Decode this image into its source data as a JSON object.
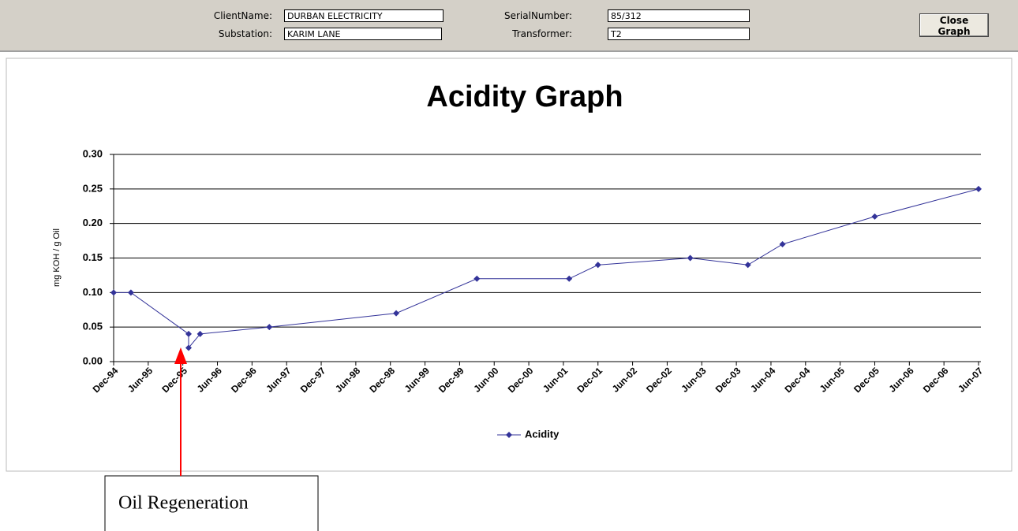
{
  "header": {
    "fields": [
      {
        "label": "ClientName:",
        "value": "DURBAN ELECTRICITY"
      },
      {
        "label": "Substation:",
        "value": "KARIM LANE"
      },
      {
        "label": "SerialNumber:",
        "value": "85/312"
      },
      {
        "label": "Transformer:",
        "value": "T2"
      }
    ],
    "button": "Close Graph"
  },
  "chart_data": {
    "type": "line",
    "title": "Acidity Graph",
    "y_label": "mg KOH / g Oil",
    "series": [
      {
        "name": "Acidity",
        "color": "#333399",
        "x": [
          "1994-12",
          "1995-03",
          "1996-01",
          "1996-01",
          "1996-03",
          "1997-03",
          "1999-01",
          "2000-03",
          "2001-07",
          "2001-12",
          "2003-04",
          "2004-02",
          "2004-08",
          "2005-12",
          "2007-06"
        ],
        "values": [
          0.1,
          0.1,
          0.04,
          0.02,
          0.04,
          0.05,
          0.07,
          0.12,
          0.12,
          0.14,
          0.15,
          0.14,
          0.17,
          0.21,
          0.25
        ]
      }
    ],
    "xlim": [
      "1994-12",
      "2007-06"
    ],
    "xticks": [
      {
        "value": "1994-12",
        "label": "Dec-94"
      },
      {
        "value": "1995-06",
        "label": "Jun-95"
      },
      {
        "value": "1995-12",
        "label": "Dec-95"
      },
      {
        "value": "1996-06",
        "label": "Jun-96"
      },
      {
        "value": "1996-12",
        "label": "Dec-96"
      },
      {
        "value": "1997-06",
        "label": "Jun-97"
      },
      {
        "value": "1997-12",
        "label": "Dec-97"
      },
      {
        "value": "1998-06",
        "label": "Jun-98"
      },
      {
        "value": "1998-12",
        "label": "Dec-98"
      },
      {
        "value": "1999-06",
        "label": "Jun-99"
      },
      {
        "value": "1999-12",
        "label": "Dec-99"
      },
      {
        "value": "2000-06",
        "label": "Jun-00"
      },
      {
        "value": "2000-12",
        "label": "Dec-00"
      },
      {
        "value": "2001-06",
        "label": "Jun-01"
      },
      {
        "value": "2001-12",
        "label": "Dec-01"
      },
      {
        "value": "2002-06",
        "label": "Jun-02"
      },
      {
        "value": "2002-12",
        "label": "Dec-02"
      },
      {
        "value": "2003-06",
        "label": "Jun-03"
      },
      {
        "value": "2003-12",
        "label": "Dec-03"
      },
      {
        "value": "2004-06",
        "label": "Jun-04"
      },
      {
        "value": "2004-12",
        "label": "Dec-04"
      },
      {
        "value": "2005-06",
        "label": "Jun-05"
      },
      {
        "value": "2005-12",
        "label": "Dec-05"
      },
      {
        "value": "2006-06",
        "label": "Jun-06"
      },
      {
        "value": "2006-12",
        "label": "Dec-06"
      },
      {
        "value": "2007-06",
        "label": "Jun-07"
      }
    ],
    "ylim": [
      0,
      0.3
    ],
    "yticks": [
      {
        "value": 0,
        "label": "0.00"
      },
      {
        "value": 0.05,
        "label": "0.05"
      },
      {
        "value": 0.1,
        "label": "0.10"
      },
      {
        "value": 0.15,
        "label": "0.15"
      },
      {
        "value": 0.2,
        "label": "0.20"
      },
      {
        "value": 0.25,
        "label": "0.25"
      },
      {
        "value": 0.3,
        "label": "0.30"
      }
    ],
    "grid": true,
    "legend": "bottom",
    "annotation": {
      "text": "Oil Regeneration",
      "x": "1996-01",
      "color": "#ff0000"
    }
  }
}
